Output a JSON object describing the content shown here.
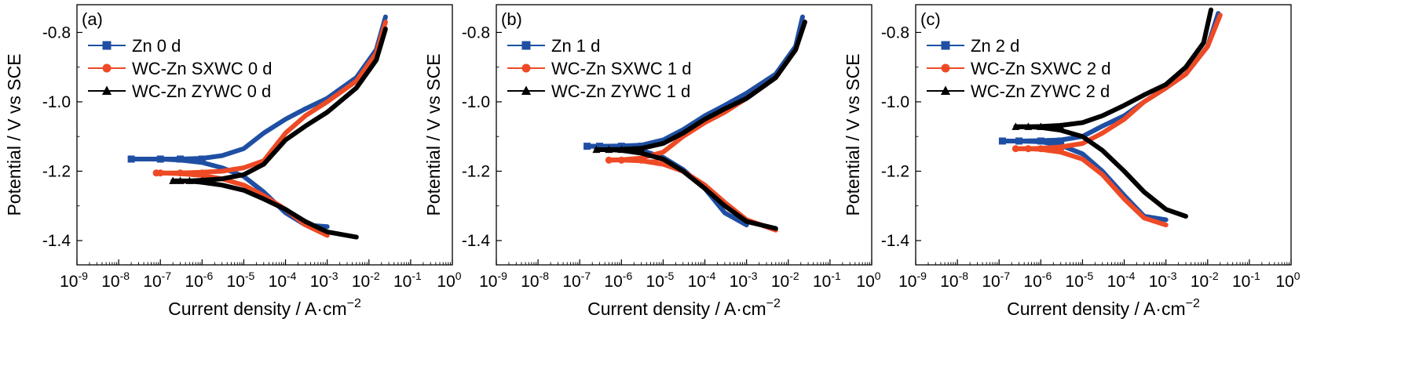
{
  "colors": {
    "zn": "#1f4fa3",
    "sxwc": "#ee4a25",
    "zywc": "#000000",
    "axis": "#000000"
  },
  "chart_data": [
    {
      "type": "line",
      "panel_label": "(a)",
      "xlabel": "Current density / A·cm",
      "xlabel_sup": "−2",
      "ylabel": "Potential / V vs SCE",
      "xscale": "log",
      "xlim": [
        1e-09,
        1
      ],
      "ylim": [
        -1.47,
        -0.72
      ],
      "x_ticks": [
        "-9",
        "-8",
        "-7",
        "-6",
        "-5",
        "-4",
        "-3",
        "-2",
        "-1",
        "0"
      ],
      "y_ticks": [
        -0.8,
        -1.0,
        -1.2,
        -1.4
      ],
      "legend_position": "top-left",
      "series": [
        {
          "name": "Zn 0 d",
          "color_key": "zn",
          "marker": "square",
          "ecorr": -1.165,
          "x": [
            2e-08,
            1e-07,
            3e-07,
            1e-06,
            3e-06,
            1e-05,
            3e-05,
            0.0001,
            0.0003,
            0.001,
            0.005,
            0.015,
            0.025
          ],
          "anodic": [
            -1.165,
            -1.165,
            -1.165,
            -1.163,
            -1.155,
            -1.135,
            -1.09,
            -1.05,
            -1.02,
            -0.99,
            -0.93,
            -0.85,
            -0.755
          ],
          "cathodic": [
            -1.165,
            -1.165,
            -1.168,
            -1.175,
            -1.19,
            -1.215,
            -1.26,
            -1.32,
            -1.355,
            -1.36
          ]
        },
        {
          "name": "WC-Zn SXWC 0 d",
          "color_key": "sxwc",
          "marker": "circle",
          "ecorr": -1.205,
          "x": [
            8e-08,
            1e-07,
            3e-07,
            1e-06,
            3e-06,
            1e-05,
            3e-05,
            0.0001,
            0.0003,
            0.001,
            0.005,
            0.015,
            0.025
          ],
          "anodic": [
            -1.205,
            -1.205,
            -1.205,
            -1.203,
            -1.2,
            -1.19,
            -1.17,
            -1.09,
            -1.04,
            -1.0,
            -0.94,
            -0.86,
            -0.77
          ],
          "cathodic": [
            -1.205,
            -1.205,
            -1.207,
            -1.212,
            -1.222,
            -1.24,
            -1.27,
            -1.31,
            -1.355,
            -1.385
          ]
        },
        {
          "name": "WC-Zn ZYWC 0 d",
          "color_key": "zywc",
          "marker": "triangle",
          "ecorr": -1.228,
          "x": [
            2e-07,
            3e-07,
            5e-07,
            1e-06,
            3e-06,
            1e-05,
            3e-05,
            0.0001,
            0.0003,
            0.001,
            0.005,
            0.015,
            0.025
          ],
          "anodic": [
            -1.228,
            -1.228,
            -1.228,
            -1.226,
            -1.222,
            -1.21,
            -1.18,
            -1.11,
            -1.07,
            -1.03,
            -0.96,
            -0.88,
            -0.79
          ],
          "cathodic": [
            -1.228,
            -1.228,
            -1.229,
            -1.232,
            -1.24,
            -1.255,
            -1.28,
            -1.31,
            -1.345,
            -1.375,
            -1.39
          ]
        }
      ]
    },
    {
      "type": "line",
      "panel_label": "(b)",
      "xlabel": "Current density / A·cm",
      "xlabel_sup": "−2",
      "ylabel": "Potential / V vs SCE",
      "xscale": "log",
      "xlim": [
        1e-09,
        1
      ],
      "ylim": [
        -1.47,
        -0.72
      ],
      "x_ticks": [
        "-9",
        "-8",
        "-7",
        "-6",
        "-5",
        "-4",
        "-3",
        "-2",
        "-1",
        "0"
      ],
      "y_ticks": [
        -0.8,
        -1.0,
        -1.2,
        -1.4
      ],
      "legend_position": "top-left",
      "series": [
        {
          "name": "Zn 1 d",
          "color_key": "zn",
          "marker": "square",
          "ecorr": -1.128,
          "x": [
            1.5e-07,
            3e-07,
            1e-06,
            3e-06,
            1e-05,
            3e-05,
            0.0001,
            0.0003,
            0.001,
            0.005,
            0.015,
            0.022
          ],
          "anodic": [
            -1.128,
            -1.128,
            -1.127,
            -1.125,
            -1.11,
            -1.08,
            -1.04,
            -1.01,
            -0.975,
            -0.92,
            -0.84,
            -0.755
          ],
          "cathodic": [
            -1.128,
            -1.128,
            -1.13,
            -1.14,
            -1.16,
            -1.195,
            -1.25,
            -1.32,
            -1.355
          ]
        },
        {
          "name": "WC-Zn SXWC 1 d",
          "color_key": "sxwc",
          "marker": "circle",
          "ecorr": -1.168,
          "x": [
            5e-07,
            1e-06,
            3e-06,
            1e-05,
            3e-05,
            0.0001,
            0.0003,
            0.001,
            0.005,
            0.015,
            0.025
          ],
          "anodic": [
            -1.168,
            -1.167,
            -1.162,
            -1.145,
            -1.1,
            -1.06,
            -1.03,
            -0.99,
            -0.93,
            -0.85,
            -0.77
          ],
          "cathodic": [
            -1.168,
            -1.168,
            -1.17,
            -1.18,
            -1.2,
            -1.24,
            -1.29,
            -1.34,
            -1.37
          ]
        },
        {
          "name": "WC-Zn ZYWC 1 d",
          "color_key": "zywc",
          "marker": "triangle",
          "ecorr": -1.138,
          "x": [
            2.5e-07,
            5e-07,
            1e-06,
            3e-06,
            1e-05,
            3e-05,
            0.0001,
            0.0003,
            0.001,
            0.005,
            0.015,
            0.025
          ],
          "anodic": [
            -1.138,
            -1.138,
            -1.137,
            -1.134,
            -1.12,
            -1.09,
            -1.05,
            -1.02,
            -0.99,
            -0.93,
            -0.85,
            -0.77
          ],
          "cathodic": [
            -1.138,
            -1.138,
            -1.14,
            -1.148,
            -1.165,
            -1.2,
            -1.25,
            -1.3,
            -1.345,
            -1.365
          ]
        }
      ]
    },
    {
      "type": "line",
      "panel_label": "(c)",
      "xlabel": "Current density / A·cm",
      "xlabel_sup": "−2",
      "ylabel": "Potential / V vs SCE",
      "xscale": "log",
      "xlim": [
        1e-09,
        1
      ],
      "ylim": [
        -1.47,
        -0.72
      ],
      "x_ticks": [
        "-9",
        "-8",
        "-7",
        "-6",
        "-5",
        "-4",
        "-3",
        "-2",
        "-1",
        "0"
      ],
      "y_ticks": [
        -0.8,
        -1.0,
        -1.2,
        -1.4
      ],
      "legend_position": "top-left",
      "series": [
        {
          "name": "Zn 2 d",
          "color_key": "zn",
          "marker": "square",
          "ecorr": -1.113,
          "x": [
            1.2e-07,
            3e-07,
            1e-06,
            3e-06,
            1e-05,
            3e-05,
            0.0001,
            0.0003,
            0.001,
            0.003,
            0.01,
            0.018
          ],
          "anodic": [
            -1.113,
            -1.113,
            -1.112,
            -1.11,
            -1.1,
            -1.07,
            -1.04,
            -1.0,
            -0.96,
            -0.92,
            -0.84,
            -0.745
          ],
          "cathodic": [
            -1.113,
            -1.113,
            -1.115,
            -1.125,
            -1.15,
            -1.2,
            -1.27,
            -1.33,
            -1.34
          ]
        },
        {
          "name": "WC-Zn SXWC 2 d",
          "color_key": "sxwc",
          "marker": "circle",
          "ecorr": -1.135,
          "x": [
            2.5e-07,
            5e-07,
            1e-06,
            3e-06,
            1e-05,
            3e-05,
            0.0001,
            0.0003,
            0.001,
            0.003,
            0.01,
            0.02
          ],
          "anodic": [
            -1.135,
            -1.135,
            -1.134,
            -1.13,
            -1.12,
            -1.09,
            -1.05,
            -1.0,
            -0.96,
            -0.92,
            -0.84,
            -0.75
          ],
          "cathodic": [
            -1.135,
            -1.135,
            -1.137,
            -1.145,
            -1.165,
            -1.21,
            -1.28,
            -1.335,
            -1.355
          ]
        },
        {
          "name": "WC-Zn ZYWC 2 d",
          "color_key": "zywc",
          "marker": "triangle",
          "ecorr": -1.072,
          "x": [
            2.5e-07,
            5e-07,
            1e-06,
            3e-06,
            1e-05,
            3e-05,
            0.0001,
            0.0003,
            0.001,
            0.003,
            0.008,
            0.012
          ],
          "anodic": [
            -1.072,
            -1.072,
            -1.071,
            -1.068,
            -1.06,
            -1.04,
            -1.01,
            -0.98,
            -0.95,
            -0.9,
            -0.83,
            -0.735
          ],
          "cathodic": [
            -1.072,
            -1.072,
            -1.074,
            -1.082,
            -1.1,
            -1.14,
            -1.2,
            -1.26,
            -1.31,
            -1.33
          ]
        }
      ]
    }
  ]
}
